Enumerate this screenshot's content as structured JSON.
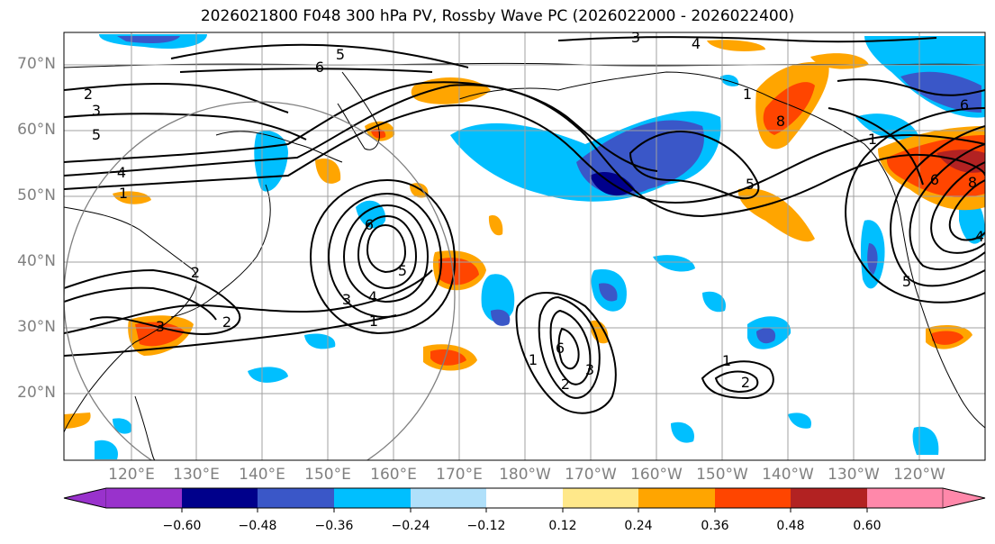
{
  "title": "2026021800 F048 300 hPa PV, Rossby Wave PC (2026022000 - 2026022400)",
  "map": {
    "lat_labels": [
      "70°N",
      "60°N",
      "50°N",
      "40°N",
      "30°N",
      "20°N"
    ],
    "lon_labels": [
      "120°E",
      "130°E",
      "140°E",
      "150°E",
      "160°E",
      "170°E",
      "180°W",
      "170°W",
      "160°W",
      "150°W",
      "140°W",
      "130°W",
      "120°W"
    ],
    "contour_labels": [
      "3",
      "4",
      "5",
      "6",
      "2",
      "3",
      "5",
      "4",
      "1",
      "2",
      "3",
      "1",
      "3",
      "4",
      "6",
      "5",
      "1",
      "2",
      "6",
      "3",
      "2",
      "2",
      "1",
      "8",
      "1",
      "5",
      "6",
      "6",
      "8",
      "1",
      "5",
      "4"
    ]
  },
  "colorbar": {
    "colors": [
      "#9932cc",
      "#00008b",
      "#3a57c8",
      "#00bfff",
      "#b0e0fa",
      "#ffffff",
      "#ffe88a",
      "#ffa500",
      "#ff4500",
      "#b22222",
      "#ff88aa"
    ],
    "ticks": [
      "−0.60",
      "−0.48",
      "−0.36",
      "−0.24",
      "−0.12",
      "0.12",
      "0.24",
      "0.36",
      "0.48",
      "0.60"
    ]
  }
}
